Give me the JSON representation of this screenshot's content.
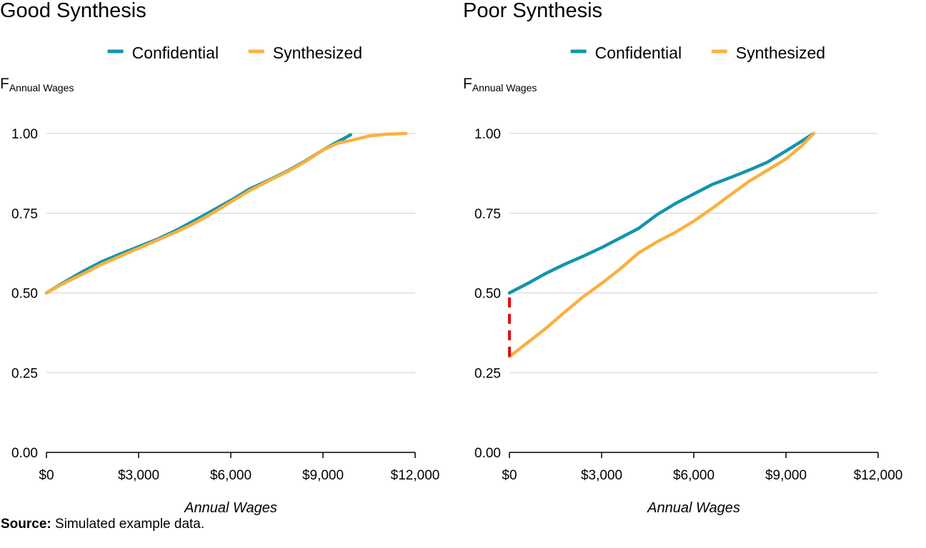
{
  "figure": {
    "source_label": "Source:",
    "source_text": " Simulated example data."
  },
  "colors": {
    "confidential": "#1494ad",
    "synthesized": "#fbb040",
    "gap": "#e50d0d",
    "grid": "#dedede"
  },
  "chart_data": [
    {
      "type": "line",
      "title": "Good Synthesis",
      "ylabel_main": "F",
      "ylabel_sub": "Annual Wages",
      "xlabel": "Annual Wages",
      "xlim": [
        0,
        12000
      ],
      "ylim": [
        0,
        1
      ],
      "x_ticks": [
        0,
        3000,
        6000,
        9000,
        12000
      ],
      "x_tick_labels": [
        "$0",
        "$3,000",
        "$6,000",
        "$9,000",
        "$12,000"
      ],
      "y_ticks": [
        0,
        0.25,
        0.5,
        0.75,
        1.0
      ],
      "y_tick_labels": [
        "0.00",
        "0.25",
        "0.50",
        "0.75",
        "1.00"
      ],
      "grid": "horizontal",
      "legend": "top-center",
      "series": [
        {
          "name": "Confidential",
          "color_key": "confidential",
          "x": [
            0,
            600,
            1200,
            1800,
            2400,
            3000,
            3600,
            4200,
            4800,
            5400,
            6000,
            6600,
            7200,
            7800,
            8400,
            9000,
            9400,
            9700,
            9900
          ],
          "y": [
            0.5,
            0.535,
            0.568,
            0.598,
            0.622,
            0.645,
            0.668,
            0.695,
            0.726,
            0.758,
            0.79,
            0.825,
            0.852,
            0.88,
            0.912,
            0.948,
            0.97,
            0.985,
            0.996
          ]
        },
        {
          "name": "Synthesized",
          "color_key": "synthesized",
          "x": [
            0,
            600,
            1200,
            1800,
            2400,
            3000,
            3600,
            4200,
            4800,
            5400,
            6000,
            6600,
            7200,
            7800,
            8400,
            9000,
            9500,
            10000,
            10500,
            11000,
            11500,
            11700
          ],
          "y": [
            0.5,
            0.532,
            0.56,
            0.59,
            0.615,
            0.64,
            0.665,
            0.69,
            0.718,
            0.75,
            0.785,
            0.82,
            0.85,
            0.878,
            0.91,
            0.948,
            0.97,
            0.98,
            0.992,
            0.997,
            0.999,
            1.0
          ]
        }
      ]
    },
    {
      "type": "line",
      "title": "Poor Synthesis",
      "ylabel_main": "F",
      "ylabel_sub": "Annual Wages",
      "xlabel": "Annual Wages",
      "xlim": [
        0,
        12000
      ],
      "ylim": [
        0,
        1
      ],
      "x_ticks": [
        0,
        3000,
        6000,
        9000,
        12000
      ],
      "x_tick_labels": [
        "$0",
        "$3,000",
        "$6,000",
        "$9,000",
        "$12,000"
      ],
      "y_ticks": [
        0,
        0.25,
        0.5,
        0.75,
        1.0
      ],
      "y_tick_labels": [
        "0.00",
        "0.25",
        "0.50",
        "0.75",
        "1.00"
      ],
      "grid": "horizontal",
      "legend": "top-center",
      "series": [
        {
          "name": "Confidential",
          "color_key": "confidential",
          "x": [
            0,
            600,
            1200,
            1800,
            2400,
            3000,
            3600,
            4200,
            4800,
            5400,
            6000,
            6600,
            7200,
            7800,
            8400,
            9000,
            9500,
            9900
          ],
          "y": [
            0.5,
            0.53,
            0.562,
            0.59,
            0.615,
            0.642,
            0.672,
            0.702,
            0.745,
            0.78,
            0.81,
            0.84,
            0.862,
            0.885,
            0.91,
            0.945,
            0.975,
            1.0
          ]
        },
        {
          "name": "Synthesized",
          "color_key": "synthesized",
          "x": [
            0,
            600,
            1200,
            1800,
            2400,
            3000,
            3600,
            4200,
            4800,
            5400,
            6000,
            6600,
            7200,
            7800,
            8400,
            9000,
            9500,
            9900
          ],
          "y": [
            0.3,
            0.345,
            0.39,
            0.44,
            0.488,
            0.53,
            0.575,
            0.625,
            0.66,
            0.69,
            0.725,
            0.765,
            0.808,
            0.85,
            0.885,
            0.92,
            0.96,
            1.0
          ]
        }
      ],
      "gap_marker": {
        "x": 0,
        "y_from": 0.3,
        "y_to": 0.5,
        "color_key": "gap"
      }
    }
  ]
}
